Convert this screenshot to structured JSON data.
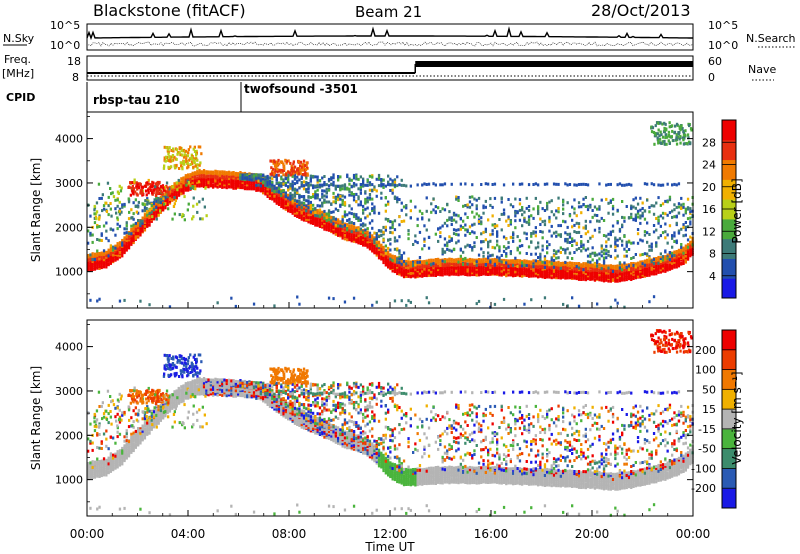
{
  "header": {
    "title": "Blackstone (fitACF)",
    "beam": "Beam 21",
    "date": "28/Oct/2013"
  },
  "strip_labels": {
    "nsky": "N.Sky",
    "nsearch": "N.Search",
    "freq_line1": "Freq.",
    "freq_line2": "[MHz]",
    "nave": "Nave",
    "cpid": "CPID"
  },
  "noise_axis": {
    "top_label": "10^5",
    "bottom_label": "10^0"
  },
  "freq_axis": {
    "ticks": [
      18,
      8
    ]
  },
  "nave_axis": {
    "ticks": [
      60,
      0
    ]
  },
  "cpid_segments": [
    {
      "label": "rbsp-tau 210",
      "start_hour": 0
    },
    {
      "label": "twofsound -3501",
      "start_hour": 6.1
    }
  ],
  "xaxis": {
    "title": "Time UT",
    "ticks": [
      "00:00",
      "04:00",
      "08:00",
      "12:00",
      "16:00",
      "20:00",
      "00:00"
    ],
    "tick_hours": [
      0,
      4,
      8,
      12,
      16,
      20,
      24
    ]
  },
  "chart_data": [
    {
      "type": "heatmap",
      "name": "power-panel",
      "ylabel": "Slant Range [km]",
      "yticks": [
        1000,
        2000,
        3000,
        4000
      ],
      "ylim": [
        180,
        4600
      ],
      "xlim": [
        0,
        24
      ],
      "colorbar": {
        "label": "Power [dB]",
        "tick_labels": [
          "28",
          "24",
          "20",
          "16",
          "12",
          "8",
          "4"
        ],
        "tick_values": [
          28,
          24,
          20,
          16,
          12,
          8,
          4
        ],
        "range": [
          0,
          32
        ],
        "colors": [
          "#1a1ae6",
          "#224fae",
          "#3d7a78",
          "#4aaa3c",
          "#b8d018",
          "#f0b000",
          "#f07a00",
          "#e83010",
          "#ee0000"
        ]
      },
      "main_band_km": [
        [
          0,
          1150
        ],
        [
          0.7,
          1220
        ],
        [
          1.3,
          1450
        ],
        [
          2.0,
          1900
        ],
        [
          2.7,
          2350
        ],
        [
          3.3,
          2700
        ],
        [
          3.9,
          2950
        ],
        [
          4.4,
          3050
        ],
        [
          6.0,
          3000
        ],
        [
          6.8,
          2950
        ],
        [
          7.5,
          2650
        ],
        [
          8.3,
          2350
        ],
        [
          9.3,
          2100
        ],
        [
          10.2,
          1850
        ],
        [
          11.0,
          1700
        ],
        [
          11.5,
          1450
        ],
        [
          12.0,
          1150
        ],
        [
          12.5,
          1000
        ],
        [
          13.0,
          1000
        ],
        [
          14.0,
          1050
        ],
        [
          16.0,
          1050
        ],
        [
          18.0,
          1000
        ],
        [
          19.5,
          950
        ],
        [
          21.0,
          900
        ],
        [
          22.0,
          1000
        ],
        [
          23.0,
          1150
        ],
        [
          23.6,
          1300
        ],
        [
          24,
          1550
        ]
      ]
    },
    {
      "type": "heatmap",
      "name": "velocity-panel",
      "ylabel": "Slant Range [km]",
      "yticks": [
        1000,
        2000,
        3000,
        4000
      ],
      "ylim": [
        180,
        4600
      ],
      "xlim": [
        0,
        24
      ],
      "colorbar": {
        "label": "Velocity [m s⁻¹]",
        "tick_labels": [
          "200",
          "100",
          "50",
          "15",
          "-15",
          "-50",
          "-100",
          "-200"
        ],
        "tick_values": [
          200,
          100,
          50,
          15,
          -15,
          -50,
          -100,
          -200
        ],
        "colors": [
          "#1a1ae6",
          "#2a5ab4",
          "#3c8c6c",
          "#4ab43c",
          "#b4b4b4",
          "#f0b000",
          "#f07800",
          "#ec3c00",
          "#ee0000"
        ]
      },
      "main_band_km": [
        [
          0,
          1150
        ],
        [
          0.7,
          1220
        ],
        [
          1.3,
          1450
        ],
        [
          2.0,
          1900
        ],
        [
          2.7,
          2350
        ],
        [
          3.3,
          2700
        ],
        [
          3.9,
          2950
        ],
        [
          4.4,
          3050
        ],
        [
          6.0,
          3000
        ],
        [
          6.8,
          2950
        ],
        [
          7.5,
          2650
        ],
        [
          8.3,
          2350
        ],
        [
          9.3,
          2100
        ],
        [
          10.2,
          1850
        ],
        [
          11.0,
          1700
        ],
        [
          11.5,
          1450
        ],
        [
          12.0,
          1150
        ],
        [
          12.5,
          1000
        ],
        [
          13.0,
          1000
        ],
        [
          14.0,
          1050
        ],
        [
          16.0,
          1050
        ],
        [
          18.0,
          1000
        ],
        [
          19.5,
          950
        ],
        [
          21.0,
          900
        ],
        [
          22.0,
          1000
        ],
        [
          23.0,
          1150
        ],
        [
          23.6,
          1300
        ],
        [
          24,
          1550
        ]
      ]
    }
  ]
}
